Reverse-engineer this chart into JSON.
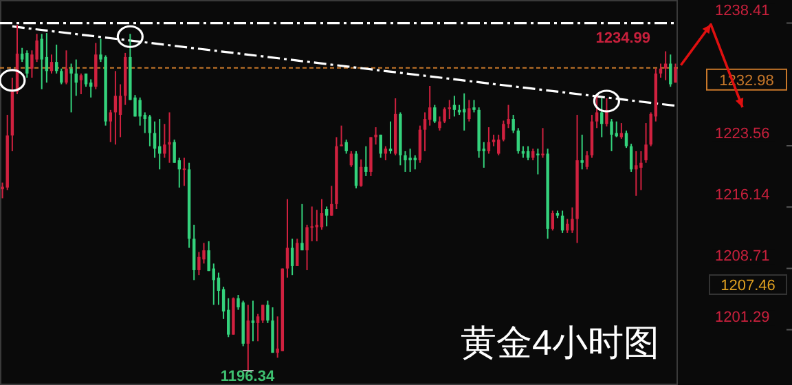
{
  "chart_data": {
    "type": "candlestick",
    "title": "黄金4小时图",
    "categories": [
      null,
      null,
      null,
      null,
      null,
      null,
      null,
      null,
      null,
      null,
      null,
      null,
      null,
      null,
      null,
      null,
      null,
      null,
      null,
      null,
      null,
      null,
      null,
      null,
      null,
      null,
      null,
      null,
      null,
      null,
      null,
      null,
      null,
      null,
      null,
      null,
      null,
      null,
      null,
      null,
      null,
      null,
      null,
      null,
      null,
      null,
      null,
      null,
      null,
      null,
      null,
      null,
      null,
      null,
      null,
      null,
      null,
      null,
      null,
      null,
      null,
      null,
      null,
      null,
      null,
      null,
      null,
      null,
      null,
      null,
      null,
      null,
      null,
      null,
      null,
      null,
      null,
      null,
      null,
      null,
      null,
      null,
      null,
      null,
      null,
      null,
      null,
      null,
      null,
      null,
      null,
      null,
      null,
      null,
      null,
      null,
      null,
      null,
      null,
      null,
      null,
      null,
      null,
      null,
      null,
      null,
      null,
      null,
      null,
      null,
      null,
      null,
      null,
      null,
      null,
      null,
      null,
      null,
      null,
      null,
      null,
      null,
      null,
      null,
      null,
      null,
      null,
      null,
      null,
      null,
      null,
      null,
      null,
      null,
      null,
      null,
      null,
      null
    ],
    "colors": [
      "#d0213f",
      "#d0213f",
      "#d0213f",
      "#d0213f",
      "#34d27c",
      "#34d27c",
      "#d0213f",
      "#d0213f",
      "#34d27c",
      "#34d27c",
      "#d0213f",
      "#34d27c",
      "#34d27c",
      "#d0213f",
      "#34d27c",
      "#34d27c",
      "#d0213f",
      "#34d27c",
      "#34d27c",
      "#d0213f",
      "#34d27c",
      "#34d27c",
      "#d0213f",
      "#d0213f",
      "#d0213f",
      "#d0213f",
      "#34d27c",
      "#34d27c",
      "#34d27c",
      "#34d27c",
      "#34d27c",
      "#34d27c",
      "#34d27c",
      "#d0213f",
      "#d0213f",
      "#34d27c",
      "#34d27c",
      "#d0213f",
      "#34d27c",
      "#34d27c",
      "#d0213f",
      "#d0213f",
      "#34d27c",
      "#34d27c",
      "#34d27c",
      "#34d27c",
      "#34d27c",
      "#d0213f",
      "#34d27c",
      "#34d27c",
      "#d0213f",
      "#34d27c",
      "#d0213f",
      "#d0213f",
      "#34d27c",
      "#34d27c",
      "#d0213f",
      "#d0213f",
      "#d0213f",
      "#34d27c",
      "#d0213f",
      "#34d27c",
      "#d0213f",
      "#d0213f",
      "#d0213f",
      "#d0213f",
      "#34d27c",
      "#d0213f",
      "#d0213f",
      "#d0213f",
      "#34d27c",
      "#d0213f",
      "#34d27c",
      "#d0213f",
      "#34d27c",
      "#d0213f",
      "#d0213f",
      "#34d27c",
      "#d0213f",
      "#34d27c",
      "#d0213f",
      "#34d27c",
      "#34d27c",
      "#34d27c",
      "#34d27c",
      "#d0213f",
      "#d0213f",
      "#d0213f",
      "#34d27c",
      "#d0213f",
      "#d0213f",
      "#d0213f",
      "#34d27c",
      "#34d27c",
      "#34d27c",
      "#d0213f",
      "#34d27c",
      "#34d27c",
      "#34d27c",
      "#d0213f",
      "#d0213f",
      "#d0213f",
      "#d0213f",
      "#d0213f",
      "#34d27c",
      "#34d27c",
      "#34d27c",
      "#34d27c",
      "#d0213f",
      "#34d27c",
      "#d0213f",
      "#34d27c",
      "#d0213f",
      "#34d27c",
      "#34d27c",
      "#d0213f",
      "#d0213f",
      "#d0213f",
      "#34d27c",
      "#d0213f",
      "#d0213f",
      "#d0213f",
      "#34d27c",
      "#d0213f",
      "#34d27c",
      "#34d27c",
      "#d0213f",
      "#34d27c",
      "#34d27c",
      "#d0213f",
      "#d0213f",
      "#d0213f",
      "#d0213f",
      "#d0213f",
      "#d0213f",
      "#d0213f",
      "#34d27c",
      "#d0213f"
    ],
    "ohlc": [
      [
        1218.3,
        1219.1,
        1217.2,
        1218.6
      ],
      [
        1218.5,
        1227.3,
        1218.2,
        1224.8
      ],
      [
        1224.8,
        1231.8,
        1222.9,
        1230.1
      ],
      [
        1230.1,
        1238.2,
        1229.8,
        1234.7
      ],
      [
        1234.7,
        1235.4,
        1233.7,
        1234.0
      ],
      [
        1234.8,
        1235.1,
        1231.8,
        1232.3
      ],
      [
        1232.9,
        1235.1,
        1231.8,
        1234.6
      ],
      [
        1234.0,
        1237.1,
        1233.7,
        1236.3
      ],
      [
        1236.5,
        1237.1,
        1230.4,
        1234.0
      ],
      [
        1234.3,
        1237.2,
        1231.2,
        1232.6
      ],
      [
        1232.6,
        1234.6,
        1232.3,
        1233.7
      ],
      [
        1233.7,
        1235.8,
        1232.3,
        1232.6
      ],
      [
        1232.6,
        1232.9,
        1231.0,
        1231.2
      ],
      [
        1231.2,
        1235.1,
        1231.0,
        1232.9
      ],
      [
        1232.9,
        1233.5,
        1227.6,
        1232.3
      ],
      [
        1232.3,
        1234.0,
        1229.6,
        1231.2
      ],
      [
        1231.5,
        1232.3,
        1229.8,
        1232.1
      ],
      [
        1232.3,
        1232.3,
        1230.7,
        1231.0
      ],
      [
        1231.2,
        1231.6,
        1229.4,
        1230.7
      ],
      [
        1230.7,
        1236.0,
        1230.4,
        1234.6
      ],
      [
        1234.6,
        1236.5,
        1233.7,
        1234.0
      ],
      [
        1234.3,
        1234.5,
        1226.0,
        1226.5
      ],
      [
        1226.5,
        1227.9,
        1224.0,
        1227.6
      ],
      [
        1227.6,
        1232.6,
        1223.7,
        1229.6
      ],
      [
        1227.3,
        1231.0,
        1224.6,
        1229.6
      ],
      [
        1229.6,
        1234.8,
        1228.5,
        1234.3
      ],
      [
        1234.3,
        1237.1,
        1229.1,
        1229.1
      ],
      [
        1229.4,
        1229.7,
        1227.1,
        1227.1
      ],
      [
        1229.1,
        1229.4,
        1226.0,
        1227.1
      ],
      [
        1227.3,
        1227.6,
        1225.1,
        1226.8
      ],
      [
        1227.1,
        1227.3,
        1223.5,
        1225.1
      ],
      [
        1225.1,
        1226.5,
        1222.1,
        1223.2
      ],
      [
        1223.5,
        1226.8,
        1220.7,
        1222.6
      ],
      [
        1222.6,
        1226.2,
        1222.1,
        1223.7
      ],
      [
        1223.7,
        1227.6,
        1221.5,
        1224.0
      ],
      [
        1224.0,
        1224.3,
        1221.5,
        1221.5
      ],
      [
        1221.8,
        1222.1,
        1218.5,
        1220.7
      ],
      [
        1220.7,
        1222.1,
        1218.7,
        1220.8
      ],
      [
        1220.7,
        1221.5,
        1211.2,
        1212.3
      ],
      [
        1212.3,
        1214.0,
        1207.3,
        1208.5
      ],
      [
        1208.5,
        1210.7,
        1207.9,
        1210.1
      ],
      [
        1209.8,
        1211.8,
        1209.3,
        1210.9
      ],
      [
        1210.9,
        1212.0,
        1208.4,
        1208.4
      ],
      [
        1208.7,
        1209.3,
        1204.3,
        1207.3
      ],
      [
        1207.6,
        1208.2,
        1204.3,
        1206.0
      ],
      [
        1206.2,
        1206.5,
        1202.6,
        1203.5
      ],
      [
        1203.7,
        1205.1,
        1200.4,
        1200.7
      ],
      [
        1200.7,
        1205.2,
        1200.7,
        1205.1
      ],
      [
        1205.1,
        1205.5,
        1203.7,
        1204.0
      ],
      [
        1204.6,
        1204.8,
        1199.3,
        1199.6
      ],
      [
        1199.6,
        1204.3,
        1196.34,
        1202.4
      ],
      [
        1202.4,
        1204.8,
        1199.9,
        1202.1
      ],
      [
        1202.1,
        1203.2,
        1199.9,
        1202.9
      ],
      [
        1202.4,
        1204.3,
        1202.1,
        1204.3
      ],
      [
        1204.3,
        1204.8,
        1202.1,
        1202.4
      ],
      [
        1202.4,
        1204.0,
        1198.5,
        1198.5
      ],
      [
        1198.5,
        1202.9,
        1197.9,
        1199.0
      ],
      [
        1198.7,
        1208.7,
        1198.7,
        1208.7
      ],
      [
        1208.7,
        1217.1,
        1207.6,
        1211.2
      ],
      [
        1211.2,
        1212.3,
        1207.9,
        1209.0
      ],
      [
        1209.0,
        1212.3,
        1209.0,
        1211.8
      ],
      [
        1211.8,
        1216.5,
        1210.9,
        1210.9
      ],
      [
        1210.9,
        1214.0,
        1208.5,
        1213.7
      ],
      [
        1213.7,
        1216.2,
        1212.0,
        1213.8
      ],
      [
        1213.7,
        1215.8,
        1212.0,
        1214.0
      ],
      [
        1213.7,
        1217.1,
        1213.4,
        1215.4
      ],
      [
        1215.9,
        1216.2,
        1213.8,
        1215.1
      ],
      [
        1215.1,
        1218.7,
        1215.1,
        1216.5
      ],
      [
        1216.5,
        1224.6,
        1215.9,
        1223.5
      ],
      [
        1223.5,
        1226.0,
        1223.5,
        1223.7
      ],
      [
        1224.0,
        1224.3,
        1222.6,
        1222.9
      ],
      [
        1221.2,
        1222.9,
        1221.0,
        1222.6
      ],
      [
        1222.6,
        1222.9,
        1218.4,
        1218.7
      ],
      [
        1218.7,
        1221.9,
        1218.6,
        1221.0
      ],
      [
        1221.0,
        1223.5,
        1219.9,
        1220.4
      ],
      [
        1220.4,
        1224.6,
        1219.9,
        1224.6
      ],
      [
        1224.6,
        1225.8,
        1223.7,
        1224.9
      ],
      [
        1224.9,
        1224.9,
        1222.1,
        1222.6
      ],
      [
        1222.6,
        1223.5,
        1221.8,
        1223.2
      ],
      [
        1223.2,
        1226.5,
        1222.6,
        1222.9
      ],
      [
        1222.6,
        1229.3,
        1222.4,
        1227.4
      ],
      [
        1227.4,
        1227.6,
        1221.2,
        1222.4
      ],
      [
        1222.4,
        1222.9,
        1220.4,
        1221.8
      ],
      [
        1222.1,
        1223.2,
        1220.4,
        1221.8
      ],
      [
        1222.1,
        1222.4,
        1220.7,
        1221.8
      ],
      [
        1221.8,
        1226.0,
        1221.5,
        1225.5
      ],
      [
        1225.5,
        1227.6,
        1222.9,
        1226.8
      ],
      [
        1226.7,
        1230.8,
        1226.0,
        1228.2
      ],
      [
        1228.2,
        1228.5,
        1226.3,
        1226.5
      ],
      [
        1225.7,
        1227.1,
        1225.4,
        1226.5
      ],
      [
        1226.5,
        1228.2,
        1226.3,
        1228.0
      ],
      [
        1228.0,
        1229.1,
        1226.8,
        1228.2
      ],
      [
        1228.5,
        1229.6,
        1227.1,
        1227.9
      ],
      [
        1227.9,
        1228.5,
        1227.3,
        1227.6
      ],
      [
        1228.0,
        1229.9,
        1225.4,
        1227.6
      ],
      [
        1226.8,
        1229.1,
        1226.5,
        1228.1
      ],
      [
        1228.2,
        1229.1,
        1227.6,
        1227.9
      ],
      [
        1227.9,
        1228.2,
        1222.1,
        1222.9
      ],
      [
        1223.2,
        1224.0,
        1220.9,
        1222.9
      ],
      [
        1222.9,
        1225.8,
        1222.6,
        1224.0
      ],
      [
        1224.0,
        1224.9,
        1223.5,
        1224.3
      ],
      [
        1222.6,
        1224.9,
        1222.4,
        1224.3
      ],
      [
        1224.3,
        1226.6,
        1224.1,
        1226.2
      ],
      [
        1226.2,
        1228.5,
        1225.7,
        1226.8
      ],
      [
        1226.8,
        1227.3,
        1225.1,
        1225.4
      ],
      [
        1225.4,
        1225.7,
        1222.6,
        1222.9
      ],
      [
        1222.9,
        1223.5,
        1222.1,
        1222.6
      ],
      [
        1222.9,
        1223.5,
        1221.8,
        1222.1
      ],
      [
        1222.1,
        1223.2,
        1221.8,
        1222.9
      ],
      [
        1222.6,
        1223.2,
        1220.1,
        1222.4
      ],
      [
        1222.4,
        1225.7,
        1222.1,
        1222.6
      ],
      [
        1222.6,
        1223.2,
        1212.3,
        1213.5
      ],
      [
        1213.5,
        1215.7,
        1213.3,
        1215.4
      ],
      [
        1215.4,
        1215.7,
        1214.8,
        1215.1
      ],
      [
        1215.1,
        1215.7,
        1213.0,
        1213.3
      ],
      [
        1213.3,
        1214.7,
        1213.0,
        1214.1
      ],
      [
        1213.3,
        1216.1,
        1213.0,
        1214.7
      ],
      [
        1214.7,
        1227.3,
        1211.8,
        1221.8
      ],
      [
        1221.8,
        1224.9,
        1220.7,
        1221.5
      ],
      [
        1221.0,
        1222.9,
        1220.7,
        1222.4
      ],
      [
        1222.4,
        1227.3,
        1222.1,
        1226.5
      ],
      [
        1226.5,
        1229.6,
        1225.7,
        1227.6
      ],
      [
        1227.6,
        1229.3,
        1224.6,
        1226.2
      ],
      [
        1226.2,
        1229.3,
        1225.9,
        1227.9
      ],
      [
        1226.5,
        1226.8,
        1222.9,
        1224.9
      ],
      [
        1225.1,
        1226.5,
        1224.6,
        1224.7
      ],
      [
        1224.6,
        1226.3,
        1224.4,
        1225.1
      ],
      [
        1225.1,
        1225.4,
        1223.3,
        1223.5
      ],
      [
        1223.5,
        1223.8,
        1220.4,
        1220.7
      ],
      [
        1220.7,
        1222.9,
        1217.5,
        1221.2
      ],
      [
        1220.9,
        1222.9,
        1218.2,
        1221.5
      ],
      [
        1221.8,
        1226.3,
        1221.5,
        1223.7
      ],
      [
        1223.7,
        1227.6,
        1223.5,
        1227.4
      ],
      [
        1227.1,
        1232.9,
        1226.5,
        1232.3
      ],
      [
        1232.3,
        1233.5,
        1231.8,
        1232.9
      ],
      [
        1232.9,
        1234.99,
        1231.5,
        1233.5
      ],
      [
        1233.5,
        1234.6,
        1230.7,
        1231.0
      ],
      [
        1231.2,
        1233.5,
        1231.2,
        1232.98
      ]
    ],
    "series": [
      {
        "type": "line",
        "color": "#ffffff",
        "line_style": "dashed",
        "values": [
          null,
          null,
          1238.0,
          null,
          null,
          null,
          null,
          null,
          null,
          null,
          null,
          null,
          null,
          null,
          null,
          null,
          null,
          null,
          null,
          null,
          null,
          null,
          null,
          null,
          null,
          null,
          null,
          null,
          null,
          null,
          null,
          null,
          null,
          null,
          null,
          null,
          null,
          null,
          null,
          null,
          null,
          null,
          null,
          null,
          null,
          null,
          null,
          null,
          null,
          null,
          null,
          null,
          null,
          null,
          null,
          null,
          null,
          null,
          null,
          null,
          null,
          null,
          null,
          null,
          null,
          null,
          null,
          null,
          null,
          null,
          null,
          null,
          null,
          null,
          null,
          null,
          null,
          null,
          null,
          null,
          null,
          null,
          null,
          null,
          null,
          null,
          null,
          null,
          null,
          null,
          null,
          null,
          null,
          null,
          null,
          null,
          null,
          null,
          null,
          null,
          null,
          null,
          null,
          null,
          null,
          null,
          null,
          null,
          null,
          null,
          null,
          null,
          null,
          null,
          null,
          null,
          null,
          null,
          null,
          null,
          null,
          null,
          null,
          null,
          null,
          null,
          null,
          null,
          null,
          null,
          null,
          null,
          null,
          null,
          null,
          null,
          null,
          1228.4
        ]
      }
    ],
    "ylim": [
      1194.6,
      1241.2
    ],
    "yticks": [
      1238.41,
      1223.56,
      1216.14,
      1208.71,
      1201.29
    ],
    "tick_labels": "y",
    "ref_lines": [
      {
        "axis": "y",
        "value": 1238.41,
        "color": "#ffffff",
        "line_style": "dashed"
      },
      {
        "axis": "y",
        "value": 1232.98,
        "label": "1232.98",
        "color": "#c8782a",
        "line_style": "dotted"
      }
    ],
    "annotations": [
      "1234.99",
      "1196.34",
      "1207.46"
    ]
  }
}
